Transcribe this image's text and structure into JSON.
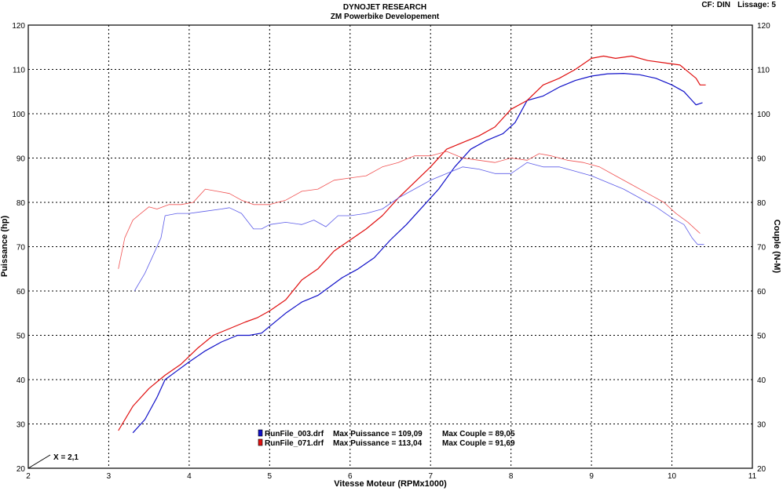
{
  "header": {
    "title": "DYNOJET RESEARCH",
    "subtitle": "ZM Powerbike Developement",
    "cf_label": "CF: DIN",
    "lissage_label": "Lissage: 5"
  },
  "axes": {
    "xlabel": "Vitesse Moteur (RPMx1000)",
    "ylabel_left": "Puissance (hp)",
    "ylabel_right": "Couple (N-M)",
    "x_ticks": [
      "2",
      "3",
      "4",
      "5",
      "6",
      "7",
      "8",
      "9",
      "10",
      "11"
    ],
    "y_ticks": [
      "20",
      "30",
      "40",
      "50",
      "60",
      "70",
      "80",
      "90",
      "100",
      "110",
      "120"
    ]
  },
  "marker": {
    "label": "X = 2,1"
  },
  "legend": [
    {
      "file": "RunFile_003.drf",
      "puissance_label": "Max Puissance = 109,09",
      "couple_label": "Max Couple = 89,05",
      "color": "#1010c8"
    },
    {
      "file": "RunFile_071.drf",
      "puissance_label": "Max Puissance = 113,04",
      "couple_label": "Max Couple = 91,69",
      "color": "#e01010"
    }
  ],
  "chart_data": {
    "type": "line",
    "xlabel": "Vitesse Moteur (RPMx1000)",
    "ylabel": "Puissance (hp)",
    "y2label": "Couple (N-M)",
    "xlim": [
      2,
      11
    ],
    "ylim": [
      20,
      120
    ],
    "y2lim": [
      20,
      120
    ],
    "grid": true,
    "legend_position": "bottom-center",
    "series": [
      {
        "name": "RunFile_003.drf",
        "measure": "Puissance",
        "color": "#1010c8",
        "width": 1.2,
        "points": [
          [
            3.3,
            28
          ],
          [
            3.45,
            31
          ],
          [
            3.6,
            36
          ],
          [
            3.7,
            40
          ],
          [
            3.85,
            42
          ],
          [
            4.0,
            44
          ],
          [
            4.2,
            46.5
          ],
          [
            4.4,
            48.5
          ],
          [
            4.6,
            50
          ],
          [
            4.75,
            50
          ],
          [
            4.9,
            50.5
          ],
          [
            5.0,
            52
          ],
          [
            5.2,
            55
          ],
          [
            5.4,
            57.5
          ],
          [
            5.6,
            59
          ],
          [
            5.75,
            61
          ],
          [
            5.9,
            63
          ],
          [
            6.1,
            65
          ],
          [
            6.3,
            67.5
          ],
          [
            6.5,
            71.5
          ],
          [
            6.7,
            75
          ],
          [
            6.9,
            79
          ],
          [
            7.1,
            83
          ],
          [
            7.3,
            88
          ],
          [
            7.5,
            92
          ],
          [
            7.7,
            94
          ],
          [
            7.9,
            95.5
          ],
          [
            8.05,
            98
          ],
          [
            8.2,
            103
          ],
          [
            8.4,
            104
          ],
          [
            8.6,
            106
          ],
          [
            8.8,
            107.5
          ],
          [
            9.0,
            108.5
          ],
          [
            9.2,
            109
          ],
          [
            9.4,
            109.1
          ],
          [
            9.6,
            108.8
          ],
          [
            9.8,
            108
          ],
          [
            10.0,
            106.5
          ],
          [
            10.15,
            105
          ],
          [
            10.25,
            103
          ],
          [
            10.3,
            102
          ],
          [
            10.38,
            102.5
          ]
        ]
      },
      {
        "name": "RunFile_071.drf",
        "measure": "Puissance",
        "color": "#e01010",
        "width": 1.2,
        "points": [
          [
            3.12,
            28.5
          ],
          [
            3.3,
            34
          ],
          [
            3.5,
            38
          ],
          [
            3.7,
            41
          ],
          [
            3.9,
            43.5
          ],
          [
            4.1,
            47
          ],
          [
            4.3,
            50
          ],
          [
            4.5,
            51.5
          ],
          [
            4.7,
            53
          ],
          [
            4.85,
            54
          ],
          [
            5.0,
            55.5
          ],
          [
            5.2,
            58
          ],
          [
            5.4,
            62.5
          ],
          [
            5.6,
            65
          ],
          [
            5.8,
            69
          ],
          [
            6.0,
            71.5
          ],
          [
            6.2,
            74
          ],
          [
            6.4,
            77
          ],
          [
            6.6,
            81
          ],
          [
            6.8,
            84.5
          ],
          [
            7.0,
            88
          ],
          [
            7.2,
            92
          ],
          [
            7.4,
            93.5
          ],
          [
            7.6,
            95
          ],
          [
            7.8,
            97
          ],
          [
            8.0,
            101
          ],
          [
            8.2,
            103
          ],
          [
            8.4,
            106.5
          ],
          [
            8.6,
            108
          ],
          [
            8.8,
            110
          ],
          [
            9.0,
            112.5
          ],
          [
            9.15,
            113
          ],
          [
            9.3,
            112.5
          ],
          [
            9.5,
            113
          ],
          [
            9.7,
            112
          ],
          [
            9.9,
            111.5
          ],
          [
            10.1,
            111
          ],
          [
            10.2,
            109.5
          ],
          [
            10.3,
            108
          ],
          [
            10.35,
            106.5
          ],
          [
            10.42,
            106.5
          ]
        ]
      },
      {
        "name": "RunFile_003.drf",
        "measure": "Couple",
        "color": "#5a5ae8",
        "width": 0.8,
        "points": [
          [
            3.32,
            60
          ],
          [
            3.45,
            64
          ],
          [
            3.55,
            68
          ],
          [
            3.65,
            72
          ],
          [
            3.7,
            77
          ],
          [
            3.85,
            77.5
          ],
          [
            4.0,
            77.5
          ],
          [
            4.2,
            78
          ],
          [
            4.4,
            78.5
          ],
          [
            4.5,
            78.8
          ],
          [
            4.65,
            77.5
          ],
          [
            4.8,
            74
          ],
          [
            4.9,
            74
          ],
          [
            5.0,
            75
          ],
          [
            5.2,
            75.5
          ],
          [
            5.4,
            75
          ],
          [
            5.55,
            76
          ],
          [
            5.7,
            74.5
          ],
          [
            5.85,
            77
          ],
          [
            6.0,
            77
          ],
          [
            6.2,
            77.5
          ],
          [
            6.4,
            78.5
          ],
          [
            6.6,
            81
          ],
          [
            6.8,
            83
          ],
          [
            7.0,
            85
          ],
          [
            7.2,
            86.5
          ],
          [
            7.4,
            88
          ],
          [
            7.6,
            87.5
          ],
          [
            7.8,
            86.5
          ],
          [
            8.0,
            86.5
          ],
          [
            8.2,
            89
          ],
          [
            8.4,
            88
          ],
          [
            8.6,
            88
          ],
          [
            8.8,
            87
          ],
          [
            9.0,
            86
          ],
          [
            9.2,
            84.5
          ],
          [
            9.4,
            83
          ],
          [
            9.6,
            81
          ],
          [
            9.8,
            79
          ],
          [
            10.0,
            76.5
          ],
          [
            10.15,
            75
          ],
          [
            10.25,
            72
          ],
          [
            10.32,
            70.5
          ],
          [
            10.4,
            70.5
          ]
        ]
      },
      {
        "name": "RunFile_071.drf",
        "measure": "Couple",
        "color": "#f05050",
        "width": 0.8,
        "points": [
          [
            3.12,
            65
          ],
          [
            3.2,
            72
          ],
          [
            3.3,
            76
          ],
          [
            3.4,
            77.5
          ],
          [
            3.5,
            79
          ],
          [
            3.6,
            78.5
          ],
          [
            3.75,
            79.5
          ],
          [
            3.9,
            79.5
          ],
          [
            4.05,
            80
          ],
          [
            4.2,
            83
          ],
          [
            4.35,
            82.5
          ],
          [
            4.5,
            82
          ],
          [
            4.65,
            80.5
          ],
          [
            4.8,
            79.5
          ],
          [
            5.0,
            79.5
          ],
          [
            5.2,
            80.5
          ],
          [
            5.4,
            82.5
          ],
          [
            5.6,
            83
          ],
          [
            5.8,
            85
          ],
          [
            6.0,
            85.5
          ],
          [
            6.2,
            86
          ],
          [
            6.4,
            88
          ],
          [
            6.6,
            89
          ],
          [
            6.8,
            90.5
          ],
          [
            7.0,
            90.5
          ],
          [
            7.2,
            91.5
          ],
          [
            7.4,
            90
          ],
          [
            7.6,
            89.5
          ],
          [
            7.8,
            89
          ],
          [
            8.0,
            90
          ],
          [
            8.2,
            89.5
          ],
          [
            8.35,
            91
          ],
          [
            8.5,
            90.5
          ],
          [
            8.7,
            89.5
          ],
          [
            8.9,
            89
          ],
          [
            9.1,
            88
          ],
          [
            9.3,
            86
          ],
          [
            9.5,
            84
          ],
          [
            9.7,
            82
          ],
          [
            9.9,
            80
          ],
          [
            10.05,
            77.5
          ],
          [
            10.2,
            75.5
          ],
          [
            10.35,
            73
          ]
        ]
      }
    ]
  }
}
